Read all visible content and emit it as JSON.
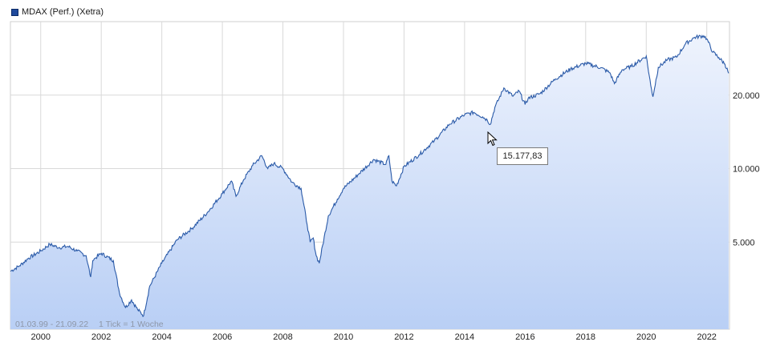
{
  "legend": {
    "label": "MDAX (Perf.) (Xetra)",
    "color": "#1f4a9c"
  },
  "footer": {
    "range": "01.03.99 - 21.09.22",
    "tick": "1 Tick = 1 Woche"
  },
  "tooltip": {
    "value": "15.177,83"
  },
  "colors": {
    "line": "#2a5aa8",
    "fill_top": "#eef3fd",
    "fill_bottom": "#b9cff5",
    "grid": "#d9d9d9"
  },
  "chart_data": {
    "type": "area",
    "title": "MDAX (Perf.) (Xetra)",
    "scale": "log",
    "xlim": [
      1999.0,
      2022.75
    ],
    "ylim": [
      2200,
      40000
    ],
    "grid": true,
    "legend_position": "top-left",
    "x_ticks": [
      "2000",
      "2002",
      "2004",
      "2006",
      "2008",
      "2010",
      "2012",
      "2014",
      "2016",
      "2018",
      "2020",
      "2022"
    ],
    "y_ticks": [
      {
        "value": 5000,
        "label": "5.000"
      },
      {
        "value": 10000,
        "label": "10.000"
      },
      {
        "value": 20000,
        "label": "20.000"
      }
    ],
    "series": [
      {
        "name": "MDAX (Perf.) (Xetra)",
        "x": [
          1999.0,
          1999.3,
          1999.6,
          2000.0,
          2000.3,
          2000.6,
          2000.9,
          2001.2,
          2001.5,
          2001.65,
          2001.72,
          2001.8,
          2002.0,
          2002.4,
          2002.6,
          2002.8,
          2003.0,
          2003.2,
          2003.4,
          2003.6,
          2004.0,
          2004.5,
          2005.0,
          2005.5,
          2006.0,
          2006.3,
          2006.45,
          2006.7,
          2007.0,
          2007.3,
          2007.5,
          2007.7,
          2008.0,
          2008.3,
          2008.6,
          2008.8,
          2008.9,
          2009.0,
          2009.1,
          2009.2,
          2009.5,
          2009.8,
          2010.0,
          2010.5,
          2011.0,
          2011.4,
          2011.5,
          2011.6,
          2011.75,
          2012.0,
          2012.5,
          2013.0,
          2013.5,
          2014.0,
          2014.3,
          2014.6,
          2014.75,
          2014.85,
          2015.0,
          2015.3,
          2015.6,
          2015.8,
          2016.0,
          2016.1,
          2016.5,
          2017.0,
          2017.5,
          2018.0,
          2018.5,
          2018.8,
          2018.95,
          2019.2,
          2019.5,
          2020.0,
          2020.15,
          2020.22,
          2020.4,
          2020.7,
          2021.0,
          2021.3,
          2021.6,
          2021.9,
          2022.0,
          2022.2,
          2022.4,
          2022.6,
          2022.72
        ],
        "values": [
          3800,
          4000,
          4300,
          4600,
          4900,
          4750,
          4800,
          4600,
          4400,
          3600,
          4200,
          4300,
          4500,
          4200,
          3100,
          2700,
          2900,
          2650,
          2500,
          3300,
          4100,
          5100,
          5700,
          6600,
          7900,
          8900,
          7700,
          9000,
          10300,
          11300,
          10000,
          10500,
          10000,
          8800,
          8300,
          5900,
          5000,
          5200,
          4400,
          4100,
          6400,
          7500,
          8300,
          9500,
          10900,
          10400,
          11300,
          8900,
          8500,
          10200,
          11400,
          13000,
          15200,
          16600,
          17000,
          16300,
          15800,
          15177.83,
          17800,
          21400,
          19800,
          20800,
          18300,
          19400,
          20300,
          23300,
          25600,
          27000,
          25900,
          24700,
          22300,
          25400,
          26200,
          28900,
          21900,
          19700,
          26000,
          27900,
          28600,
          32500,
          34500,
          35000,
          34000,
          30000,
          28500,
          26800,
          24600
        ]
      }
    ]
  }
}
